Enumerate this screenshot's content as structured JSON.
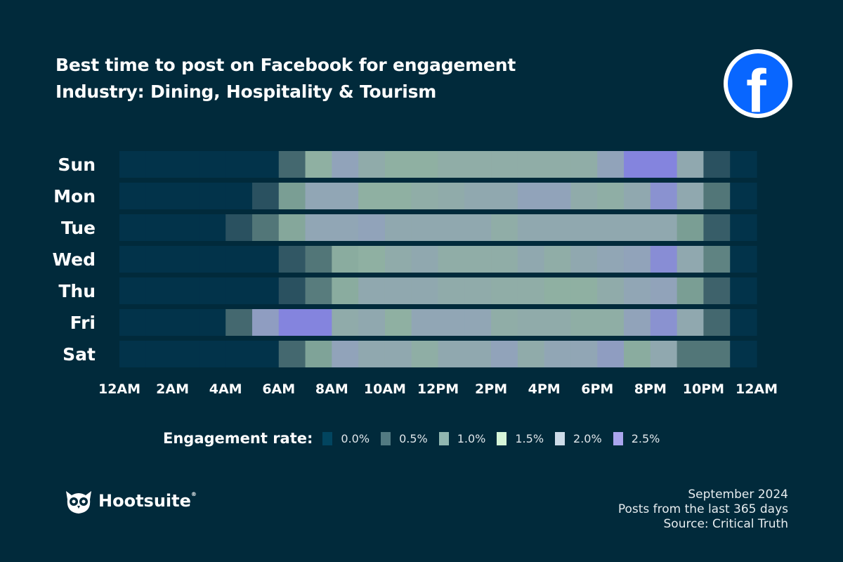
{
  "header": {
    "title": "Best time to post on Facebook for engagement",
    "subtitle": "Industry: Dining, Hospitality & Tourism",
    "platform_icon": "facebook-logo",
    "platform_color": "#0866ff"
  },
  "chart_data": {
    "type": "heatmap",
    "title": "Best time to post on Facebook for engagement",
    "subtitle": "Industry: Dining, Hospitality & Tourism",
    "rows": [
      "Sun",
      "Mon",
      "Tue",
      "Wed",
      "Thu",
      "Fri",
      "Sat"
    ],
    "x_tick_labels": [
      "12AM",
      "2AM",
      "4AM",
      "6AM",
      "8AM",
      "10AM",
      "12PM",
      "2PM",
      "4PM",
      "6PM",
      "8PM",
      "10PM",
      "12AM"
    ],
    "hours": 24,
    "values": [
      [
        0,
        0,
        0,
        0,
        0,
        0,
        0.5,
        1.3,
        1.9,
        1.6,
        1.3,
        1.3,
        1.5,
        1.5,
        1.5,
        1.5,
        1.5,
        1.5,
        1.9,
        2.5,
        2.5,
        1.7,
        0.3,
        0
      ],
      [
        0,
        0,
        0,
        0,
        0,
        0.3,
        0.9,
        1.8,
        1.8,
        1.3,
        1.3,
        1.5,
        1.6,
        1.7,
        1.7,
        1.9,
        1.9,
        1.6,
        1.4,
        1.7,
        2.2,
        1.7,
        0.6,
        0
      ],
      [
        0,
        0,
        0,
        0,
        0.3,
        0.6,
        1.1,
        1.8,
        1.8,
        1.9,
        1.7,
        1.7,
        1.7,
        1.7,
        1.5,
        1.7,
        1.7,
        1.7,
        1.7,
        1.7,
        1.7,
        0.9,
        0.4,
        0
      ],
      [
        0,
        0,
        0,
        0,
        0,
        0,
        0.35,
        0.6,
        1.2,
        1.3,
        1.6,
        1.7,
        1.5,
        1.5,
        1.5,
        1.7,
        1.5,
        1.7,
        1.8,
        1.9,
        2.3,
        1.7,
        0.7,
        0
      ],
      [
        0,
        0,
        0,
        0,
        0,
        0,
        0.3,
        0.65,
        1.2,
        1.7,
        1.7,
        1.7,
        1.6,
        1.6,
        1.5,
        1.5,
        1.3,
        1.3,
        1.6,
        1.8,
        1.9,
        0.9,
        0.45,
        0
      ],
      [
        0,
        0,
        0,
        0,
        0.5,
        2.0,
        2.5,
        2.5,
        1.6,
        1.7,
        1.3,
        1.8,
        1.8,
        1.8,
        1.5,
        1.6,
        1.6,
        1.4,
        1.4,
        1.9,
        2.2,
        1.7,
        0.5,
        0
      ],
      [
        0,
        0,
        0,
        0,
        0,
        0,
        0.5,
        1.0,
        1.9,
        1.7,
        1.7,
        1.4,
        1.7,
        1.7,
        1.9,
        1.6,
        1.8,
        1.8,
        2.0,
        1.2,
        1.7,
        0.6,
        0.6,
        0
      ]
    ],
    "legend": {
      "title": "Engagement rate:",
      "items": [
        {
          "label": "0.0%",
          "color": "#02455f"
        },
        {
          "label": "0.5%",
          "color": "#527a82"
        },
        {
          "label": "1.0%",
          "color": "#91b6b0"
        },
        {
          "label": "1.5%",
          "color": "#d6f5d8"
        },
        {
          "label": "2.0%",
          "color": "#cddbe8"
        },
        {
          "label": "2.5%",
          "color": "#aaa5ee"
        }
      ]
    }
  },
  "brand": {
    "name": "Hootsuite",
    "mark": "®"
  },
  "footer": {
    "date": "September 2024",
    "period": "Posts from the last 365 days",
    "source": "Source: Critical Truth"
  }
}
